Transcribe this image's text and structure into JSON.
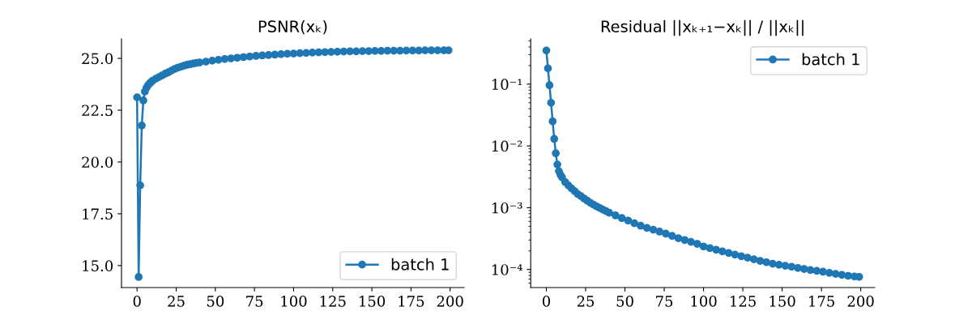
{
  "chart_data": [
    {
      "type": "line",
      "title": "PSNR(xₖ)",
      "legend": "bottom right",
      "marker": "circle",
      "line_style": "solid",
      "grid": false,
      "x": [
        0,
        1,
        2,
        3,
        4,
        5,
        6,
        7,
        8,
        9,
        10,
        12,
        14,
        16,
        18,
        20,
        22,
        24,
        26,
        28,
        30,
        32,
        34,
        36,
        38,
        40,
        44,
        48,
        52,
        56,
        60,
        64,
        68,
        72,
        76,
        80,
        84,
        88,
        92,
        96,
        100,
        104,
        108,
        112,
        116,
        120,
        124,
        128,
        132,
        136,
        140,
        144,
        148,
        152,
        156,
        160,
        164,
        168,
        172,
        176,
        180,
        184,
        188,
        192,
        196,
        199
      ],
      "series": [
        {
          "name": "batch 1",
          "color": "#1f77b4",
          "values": [
            23.12,
            14.45,
            18.87,
            21.76,
            22.97,
            23.4,
            23.58,
            23.7,
            23.79,
            23.86,
            23.92,
            24.02,
            24.1,
            24.18,
            24.26,
            24.33,
            24.41,
            24.49,
            24.55,
            24.6,
            24.65,
            24.69,
            24.72,
            24.75,
            24.78,
            24.8,
            24.84,
            24.89,
            24.93,
            24.97,
            25.0,
            25.03,
            25.06,
            25.09,
            25.12,
            25.14,
            25.16,
            25.18,
            25.2,
            25.22,
            25.23,
            25.25,
            25.26,
            25.28,
            25.29,
            25.3,
            25.31,
            25.32,
            25.33,
            25.34,
            25.34,
            25.35,
            25.35,
            25.36,
            25.36,
            25.37,
            25.37,
            25.37,
            25.38,
            25.38,
            25.38,
            25.39,
            25.39,
            25.39,
            25.39,
            25.39
          ]
        }
      ],
      "xlim": [
        -9.95,
        208.95
      ],
      "xticks": [
        0,
        25,
        50,
        75,
        100,
        125,
        150,
        175,
        200
      ],
      "ylim": [
        13.94,
        25.94
      ],
      "yticks": [
        {
          "value": 15,
          "label": "15.0"
        },
        17.5,
        {
          "value": 20,
          "label": "20.0"
        },
        22.5,
        {
          "value": 25,
          "label": "25.0"
        }
      ]
    },
    {
      "type": "line",
      "title": "Residual ||xₖ₊₁−xₖ|| / ||xₖ||",
      "legend": "top right",
      "marker": "circle",
      "line_style": "solid",
      "grid": false,
      "log": true,
      "x": [
        0,
        1,
        2,
        3,
        4,
        5,
        6,
        7,
        8,
        9,
        10,
        12,
        14,
        16,
        18,
        20,
        22,
        24,
        26,
        28,
        30,
        32,
        34,
        36,
        38,
        40,
        44,
        48,
        52,
        56,
        60,
        64,
        68,
        72,
        76,
        80,
        84,
        88,
        92,
        96,
        100,
        104,
        108,
        112,
        116,
        120,
        124,
        128,
        132,
        136,
        140,
        144,
        148,
        152,
        156,
        160,
        164,
        168,
        172,
        176,
        180,
        184,
        188,
        192,
        196,
        199
      ],
      "series": [
        {
          "name": "batch 1",
          "color": "#1f77b4",
          "values": [
            0.35,
            0.18,
            0.096,
            0.05,
            0.025,
            0.013,
            0.0076,
            0.005,
            0.0039,
            0.0034,
            0.0031,
            0.0026,
            0.0023,
            0.00205,
            0.00185,
            0.00166,
            0.00154,
            0.00141,
            0.0013,
            0.0012,
            0.00112,
            0.00105,
            0.00099,
            0.00093,
            0.00088,
            0.00083,
            0.00075,
            0.00068,
            0.00062,
            0.00056,
            0.00051,
            0.00047,
            0.00044,
            0.00041,
            0.00038,
            0.00035,
            0.00032,
            0.0003,
            0.00028,
            0.00026,
            0.000236,
            0.000222,
            0.000209,
            0.000196,
            0.000185,
            0.000174,
            0.000164,
            0.000155,
            0.000146,
            0.000138,
            0.000131,
            0.000124,
            0.000119,
            0.000115,
            0.000111,
            0.000106,
            0.000102,
            9.8e-05,
            9.5e-05,
            9.2e-05,
            8.8e-05,
            8.5e-05,
            8.2e-05,
            7.9e-05,
            7.7e-05,
            7.6e-05
          ]
        }
      ],
      "xlim": [
        -9.95,
        208.95
      ],
      "xticks": [
        0,
        25,
        50,
        75,
        100,
        125,
        150,
        175,
        200
      ],
      "ylim": [
        5.1e-05,
        0.54
      ],
      "yticks": [
        {
          "value": 0.0001,
          "label": "10⁻⁴"
        },
        {
          "value": 0.001,
          "label": "10⁻³"
        },
        {
          "value": 0.01,
          "label": "10⁻²"
        },
        {
          "value": 0.1,
          "label": "10⁻¹"
        }
      ]
    }
  ]
}
